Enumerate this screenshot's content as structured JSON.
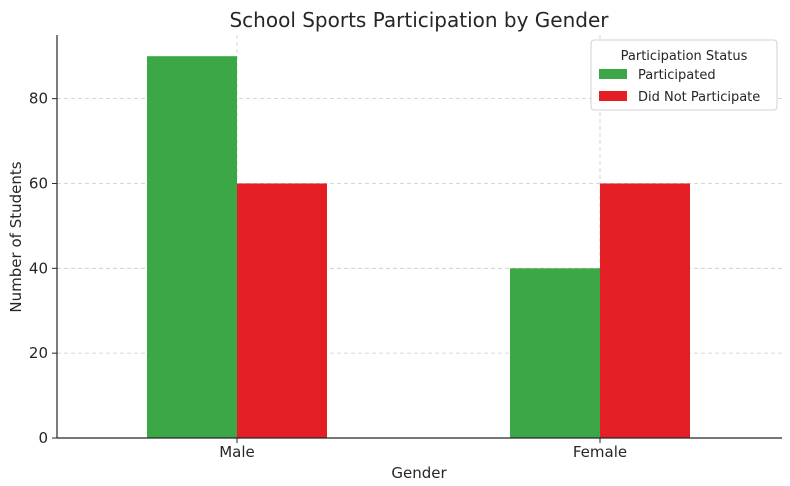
{
  "chart_data": {
    "type": "bar",
    "title": "School Sports Participation by Gender",
    "xlabel": "Gender",
    "ylabel": "Number of Students",
    "categories": [
      "Male",
      "Female"
    ],
    "series": [
      {
        "name": "Participated",
        "values": [
          90,
          40
        ],
        "color": "#3ca746"
      },
      {
        "name": "Did Not Participate",
        "values": [
          60,
          60
        ],
        "color": "#e31e24"
      }
    ],
    "ylim": [
      0,
      95
    ],
    "yticks": [
      0,
      20,
      40,
      60,
      80
    ],
    "grid": true,
    "legend": {
      "title": "Participation Status",
      "position": "top-right"
    }
  }
}
